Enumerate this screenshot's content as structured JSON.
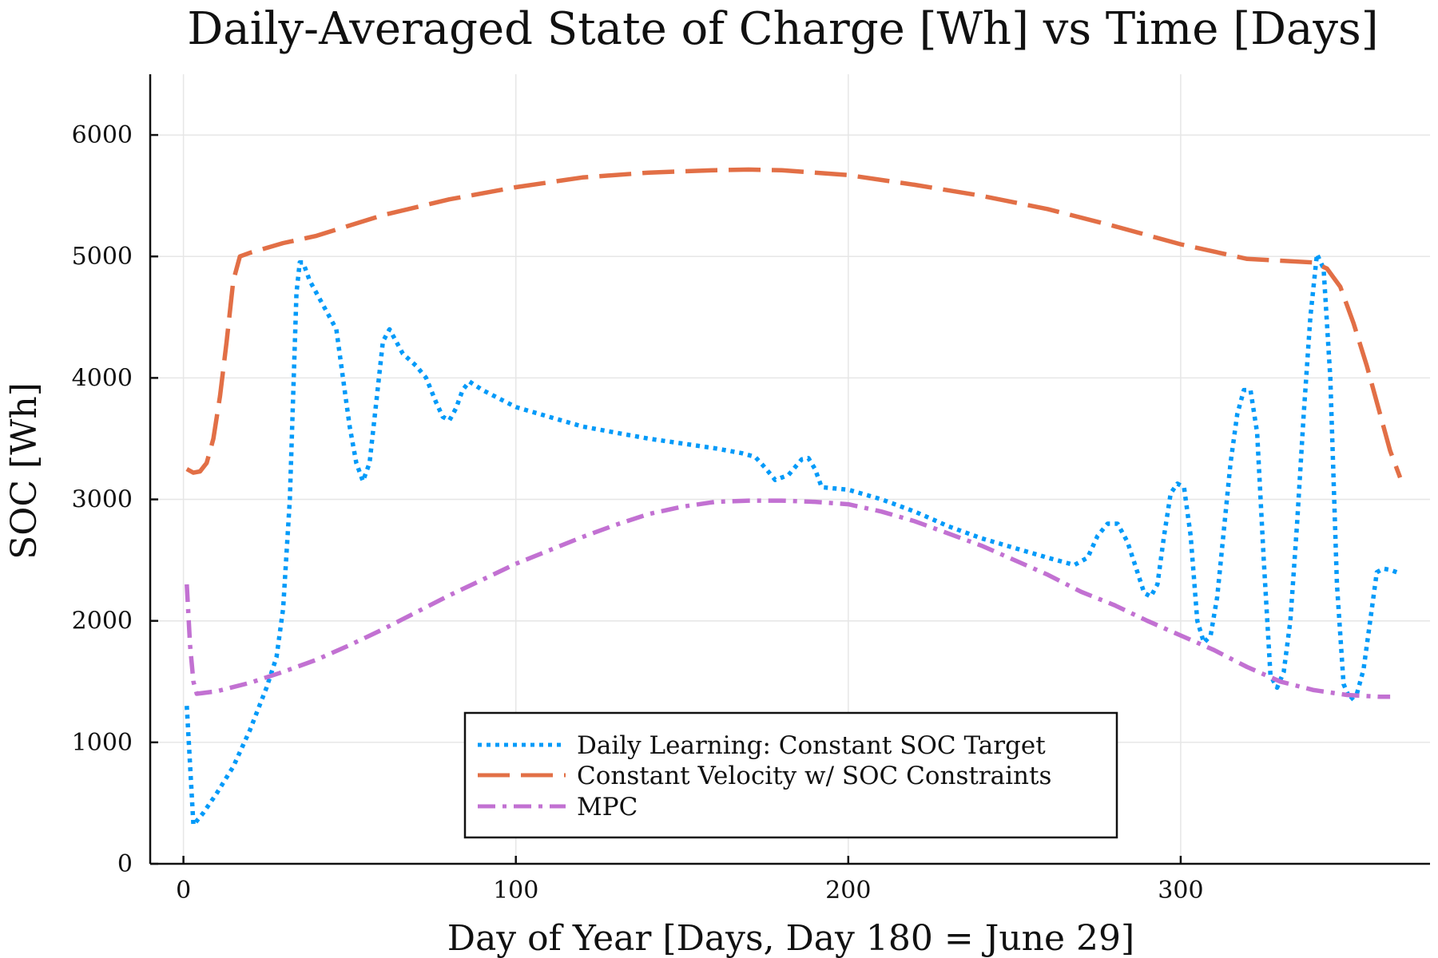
{
  "chart_data": {
    "type": "line",
    "title": "Daily-Averaged State of Charge [Wh] vs Time [Days]",
    "xlabel": "Day of Year [Days, Day 180 = June 29]",
    "ylabel": "SOC [Wh]",
    "xlim": [
      -10,
      375
    ],
    "ylim": [
      0,
      6500
    ],
    "xticks": [
      0,
      100,
      200,
      300
    ],
    "yticks": [
      0,
      1000,
      2000,
      3000,
      4000,
      5000,
      6000
    ],
    "grid": true,
    "legend_position": "bottom-center",
    "series": [
      {
        "name": "Daily Learning: Constant SOC Target",
        "color": "#009af9",
        "dash": "dotted",
        "x": [
          1,
          3,
          6,
          10,
          15,
          20,
          25,
          28,
          30,
          32,
          34,
          35,
          36,
          38,
          42,
          46,
          48,
          50,
          52,
          54,
          56,
          58,
          60,
          62,
          64,
          66,
          70,
          73,
          76,
          78,
          80,
          82,
          84,
          86,
          90,
          95,
          100,
          110,
          120,
          130,
          140,
          150,
          160,
          168,
          172,
          175,
          178,
          182,
          186,
          188,
          190,
          192,
          200,
          210,
          220,
          230,
          240,
          250,
          260,
          268,
          272,
          275,
          278,
          281,
          284,
          287,
          289,
          291,
          293,
          295,
          297,
          299,
          301,
          303,
          305,
          307,
          309,
          311,
          313,
          315,
          317,
          319,
          321,
          323,
          325,
          327,
          329,
          331,
          333,
          335,
          337,
          339,
          341,
          343,
          345,
          347,
          349,
          351,
          353,
          355,
          357,
          359,
          361,
          363,
          365
        ],
        "y": [
          1300,
          320,
          420,
          580,
          800,
          1100,
          1450,
          1700,
          2100,
          3000,
          4700,
          4950,
          4950,
          4800,
          4600,
          4400,
          4000,
          3600,
          3300,
          3150,
          3300,
          3800,
          4300,
          4400,
          4300,
          4200,
          4100,
          4000,
          3800,
          3680,
          3650,
          3750,
          3900,
          3970,
          3900,
          3830,
          3760,
          3680,
          3600,
          3550,
          3500,
          3460,
          3420,
          3380,
          3350,
          3260,
          3160,
          3200,
          3330,
          3340,
          3250,
          3100,
          3080,
          3000,
          2900,
          2780,
          2680,
          2600,
          2520,
          2460,
          2520,
          2700,
          2800,
          2800,
          2650,
          2400,
          2230,
          2200,
          2300,
          2700,
          3050,
          3130,
          3100,
          2700,
          2000,
          1820,
          1880,
          2200,
          2750,
          3300,
          3700,
          3900,
          3900,
          3550,
          2500,
          1550,
          1450,
          1580,
          2000,
          2800,
          3700,
          4500,
          5020,
          4900,
          4000,
          2300,
          1480,
          1350,
          1400,
          1600,
          2000,
          2400,
          2430,
          2420,
          2400
        ],
        "xs_note": ""
      },
      {
        "name": "Constant Velocity w/ SOC Constraints",
        "color": "#e26f46",
        "dash": "long-dashed",
        "x": [
          1,
          3,
          5,
          7,
          9,
          11,
          13,
          15,
          17,
          20,
          30,
          40,
          60,
          80,
          100,
          120,
          140,
          160,
          170,
          180,
          200,
          220,
          240,
          260,
          280,
          300,
          320,
          340,
          344,
          348,
          352,
          356,
          360,
          363,
          366
        ],
        "y": [
          3250,
          3220,
          3230,
          3300,
          3500,
          3850,
          4300,
          4800,
          5000,
          5030,
          5110,
          5170,
          5340,
          5470,
          5570,
          5650,
          5690,
          5710,
          5715,
          5710,
          5670,
          5590,
          5500,
          5390,
          5250,
          5100,
          4980,
          4950,
          4900,
          4750,
          4450,
          4100,
          3700,
          3400,
          3180
        ]
      },
      {
        "name": "MPC",
        "color": "#c271d2",
        "dash": "dash-dot",
        "x": [
          1,
          2,
          3,
          4,
          10,
          20,
          30,
          40,
          50,
          60,
          70,
          80,
          90,
          100,
          110,
          120,
          130,
          140,
          150,
          160,
          170,
          180,
          190,
          200,
          210,
          220,
          230,
          240,
          250,
          260,
          270,
          280,
          290,
          300,
          310,
          320,
          330,
          340,
          350,
          360,
          363
        ],
        "y": [
          2300,
          1800,
          1500,
          1400,
          1420,
          1490,
          1580,
          1680,
          1800,
          1930,
          2070,
          2210,
          2340,
          2470,
          2580,
          2690,
          2790,
          2880,
          2940,
          2980,
          2990,
          2990,
          2980,
          2960,
          2900,
          2820,
          2720,
          2620,
          2500,
          2380,
          2240,
          2130,
          2000,
          1880,
          1760,
          1620,
          1500,
          1430,
          1390,
          1375,
          1375
        ]
      }
    ]
  }
}
